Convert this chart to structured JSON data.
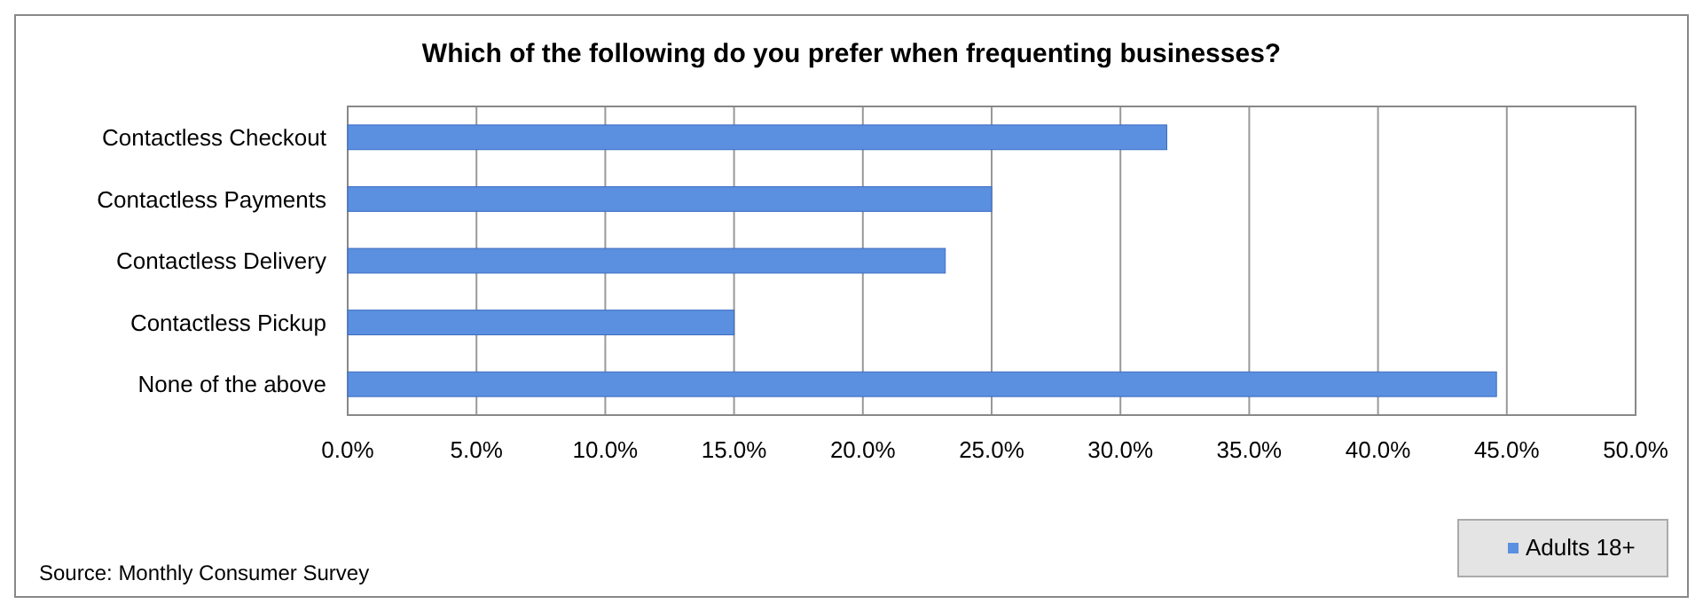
{
  "chart_data": {
    "type": "bar",
    "orientation": "horizontal",
    "title": "Which of the following do you prefer when frequenting businesses?",
    "categories": [
      "Contactless Checkout",
      "Contactless Payments",
      "Contactless Delivery",
      "Contactless Pickup",
      "None of the above"
    ],
    "series": [
      {
        "name": "Adults 18+",
        "color": "#5b8fe0",
        "values": [
          31.8,
          25.0,
          23.2,
          15.0,
          44.6
        ]
      }
    ],
    "xlim": [
      0,
      50
    ],
    "xticks": [
      {
        "value": 0,
        "label": "0.0%"
      },
      {
        "value": 5,
        "label": "5.0%"
      },
      {
        "value": 10,
        "label": "10.0%"
      },
      {
        "value": 15,
        "label": "15.0%"
      },
      {
        "value": 20,
        "label": "20.0%"
      },
      {
        "value": 25,
        "label": "25.0%"
      },
      {
        "value": 30,
        "label": "30.0%"
      },
      {
        "value": 35,
        "label": "35.0%"
      },
      {
        "value": 40,
        "label": "40.0%"
      },
      {
        "value": 45,
        "label": "45.0%"
      },
      {
        "value": 50,
        "label": "50.0%"
      }
    ],
    "grid": "x",
    "legend": "bottom right",
    "annotations": [
      "Source: Monthly Consumer Survey"
    ]
  }
}
